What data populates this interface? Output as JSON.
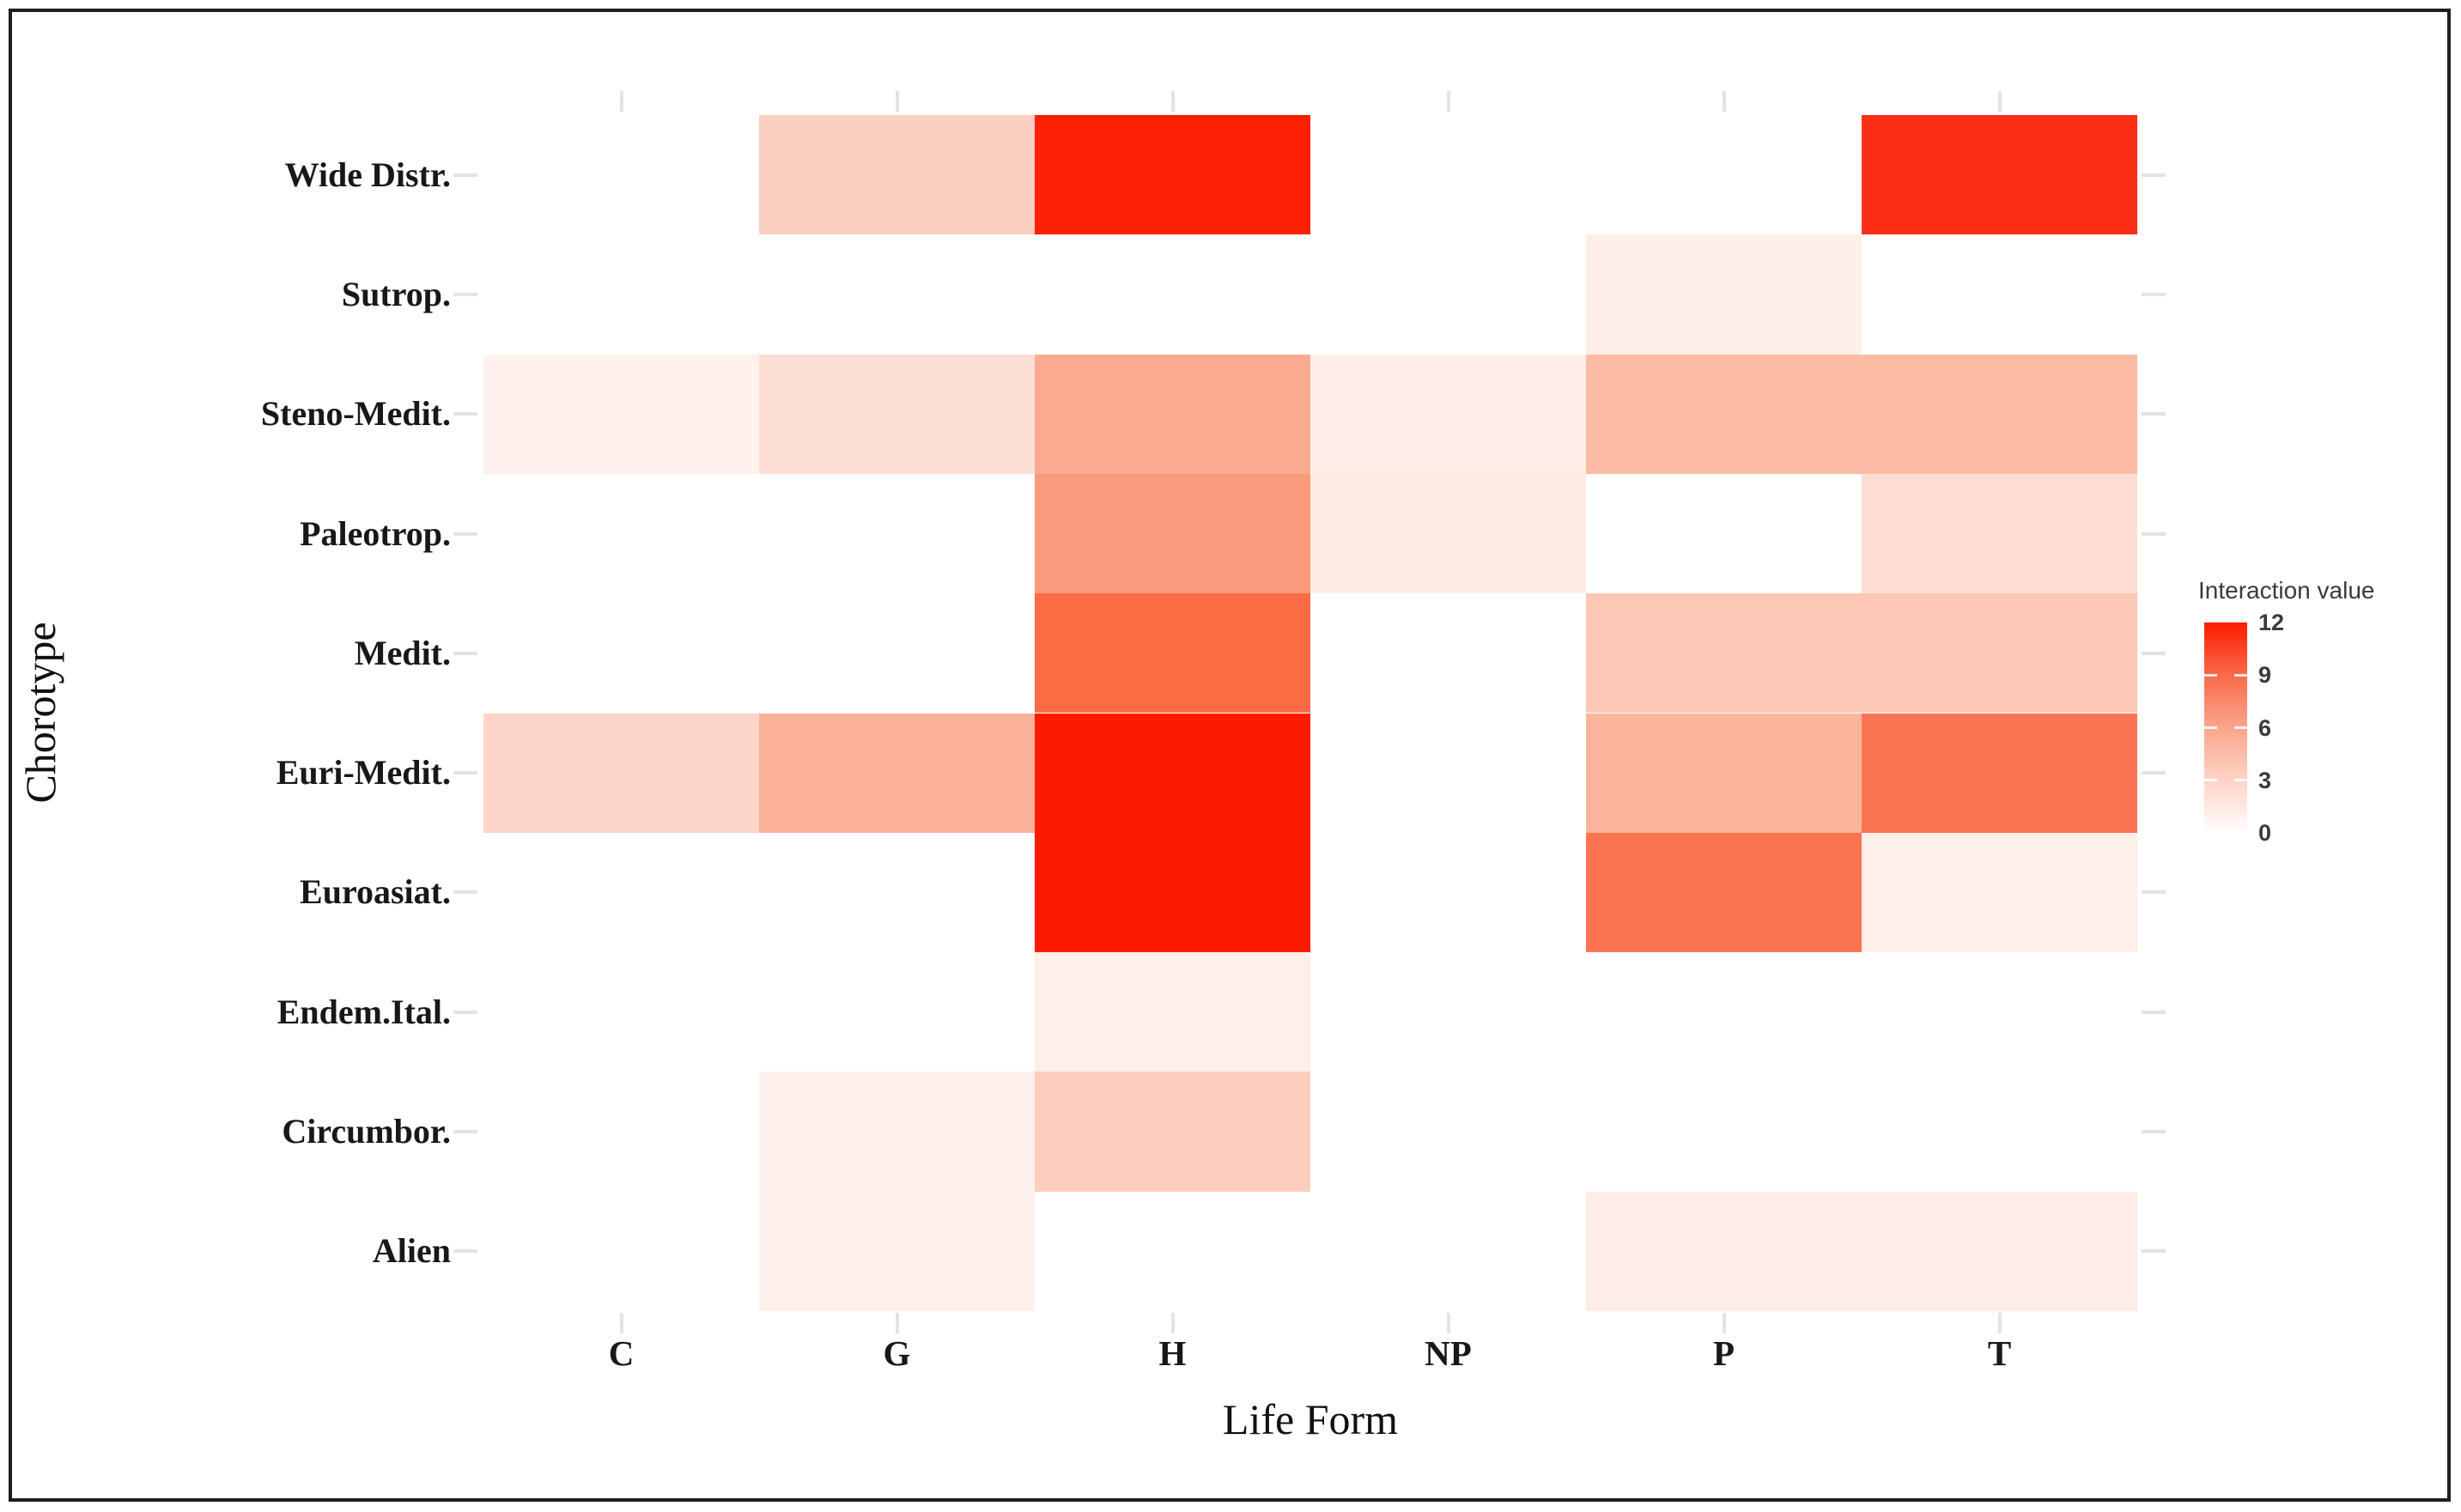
{
  "figure": {
    "background_color": "#ffffff",
    "border_color": "#1e1e1e",
    "tick_color": "#e3e3e3",
    "text_color": "#181818"
  },
  "chart_data": {
    "type": "heatmap",
    "title": "",
    "xlabel": "Life Form",
    "ylabel": "Chorotype",
    "x_categories": [
      "C",
      "G",
      "H",
      "NP",
      "P",
      "T"
    ],
    "y_categories": [
      "Wide Distr.",
      "Sutrop.",
      "Steno-Medit.",
      "Paleotrop.",
      "Medit.",
      "Euri-Medit.",
      "Euroasiat.",
      "Endem.Ital.",
      "Circumbor.",
      "Alien"
    ],
    "value_range": [
      0,
      12
    ],
    "grid": false,
    "legend": {
      "title": "Interaction value",
      "position": "right",
      "ticks": [
        12,
        9,
        6,
        3,
        0
      ],
      "gradient_stops": [
        {
          "value": 12,
          "color": "#FB1B00"
        },
        {
          "value": 9,
          "color": "#F96A4A"
        },
        {
          "value": 6,
          "color": "#FAA58D"
        },
        {
          "value": 3,
          "color": "#FDD3C5"
        },
        {
          "value": 0,
          "color": "#FFFFFF"
        }
      ]
    },
    "matrix_columns": [
      "C",
      "G",
      "H",
      "NP",
      "P",
      "T"
    ],
    "matrix": [
      {
        "row": "Wide Distr.",
        "values": [
          null,
          3,
          12,
          null,
          null,
          11
        ]
      },
      {
        "row": "Sutrop.",
        "values": [
          null,
          null,
          null,
          null,
          1,
          null
        ]
      },
      {
        "row": "Steno-Medit.",
        "values": [
          1,
          2,
          5,
          1,
          4,
          4
        ]
      },
      {
        "row": "Paleotrop.",
        "values": [
          null,
          null,
          6,
          1,
          null,
          2
        ]
      },
      {
        "row": "Medit.",
        "values": [
          null,
          null,
          9,
          null,
          4,
          4
        ]
      },
      {
        "row": "Euri-Medit.",
        "values": [
          3,
          5,
          12,
          null,
          5,
          8
        ]
      },
      {
        "row": "Euroasiat.",
        "values": [
          null,
          null,
          12,
          null,
          8,
          1
        ]
      },
      {
        "row": "Endem.Ital.",
        "values": [
          null,
          null,
          1,
          null,
          null,
          null
        ]
      },
      {
        "row": "Circumbor.",
        "values": [
          null,
          1,
          3,
          null,
          null,
          null
        ]
      },
      {
        "row": "Alien",
        "values": [
          null,
          1,
          null,
          null,
          1,
          1
        ]
      }
    ],
    "cells": [
      {
        "row": "Wide Distr.",
        "col": "G",
        "value": 3,
        "color": "#FCD0C1"
      },
      {
        "row": "Wide Distr.",
        "col": "H",
        "value": 12,
        "color": "#FB2003"
      },
      {
        "row": "Wide Distr.",
        "col": "T",
        "value": 11,
        "color": "#FC2E15"
      },
      {
        "row": "Sutrop.",
        "col": "P",
        "value": 1,
        "color": "#FDEFE8"
      },
      {
        "row": "Steno-Medit.",
        "col": "C",
        "value": 1,
        "color": "#FEF0EA"
      },
      {
        "row": "Steno-Medit.",
        "col": "G",
        "value": 2,
        "color": "#FDDFD5"
      },
      {
        "row": "Steno-Medit.",
        "col": "H",
        "value": 5,
        "color": "#FBAB90"
      },
      {
        "row": "Steno-Medit.",
        "col": "NP",
        "value": 1,
        "color": "#FEEDE7"
      },
      {
        "row": "Steno-Medit.",
        "col": "P",
        "value": 4,
        "color": "#FCBCA4"
      },
      {
        "row": "Steno-Medit.",
        "col": "T",
        "value": 4,
        "color": "#FCBCA4"
      },
      {
        "row": "Paleotrop.",
        "col": "H",
        "value": 6,
        "color": "#FB9B7B"
      },
      {
        "row": "Paleotrop.",
        "col": "NP",
        "value": 1,
        "color": "#FEEBE3"
      },
      {
        "row": "Paleotrop.",
        "col": "T",
        "value": 2,
        "color": "#FDDDD3"
      },
      {
        "row": "Medit.",
        "col": "H",
        "value": 9,
        "color": "#FB6C45"
      },
      {
        "row": "Medit.",
        "col": "P",
        "value": 4,
        "color": "#FCC7B4"
      },
      {
        "row": "Medit.",
        "col": "T",
        "value": 4,
        "color": "#FCC7B4"
      },
      {
        "row": "Euri-Medit.",
        "col": "C",
        "value": 3,
        "color": "#FDD5C8"
      },
      {
        "row": "Euri-Medit.",
        "col": "G",
        "value": 5,
        "color": "#FBB098"
      },
      {
        "row": "Euri-Medit.",
        "col": "H",
        "value": 12,
        "color": "#FB1C00"
      },
      {
        "row": "Euri-Medit.",
        "col": "P",
        "value": 5,
        "color": "#FCB49C"
      },
      {
        "row": "Euri-Medit.",
        "col": "T",
        "value": 8,
        "color": "#FB7452"
      },
      {
        "row": "Euroasiat.",
        "col": "H",
        "value": 12,
        "color": "#FB1C00"
      },
      {
        "row": "Euroasiat.",
        "col": "P",
        "value": 8,
        "color": "#FB7452"
      },
      {
        "row": "Euroasiat.",
        "col": "T",
        "value": 1,
        "color": "#FEEFE9"
      },
      {
        "row": "Endem.Ital.",
        "col": "H",
        "value": 1,
        "color": "#FDEFE9"
      },
      {
        "row": "Circumbor.",
        "col": "G",
        "value": 1,
        "color": "#FEF1EB"
      },
      {
        "row": "Circumbor.",
        "col": "H",
        "value": 3,
        "color": "#FCCDBD"
      },
      {
        "row": "Alien",
        "col": "G",
        "value": 1,
        "color": "#FEF1EB"
      },
      {
        "row": "Alien",
        "col": "P",
        "value": 1,
        "color": "#FDEDE6"
      },
      {
        "row": "Alien",
        "col": "T",
        "value": 1,
        "color": "#FDEDE6"
      }
    ]
  }
}
